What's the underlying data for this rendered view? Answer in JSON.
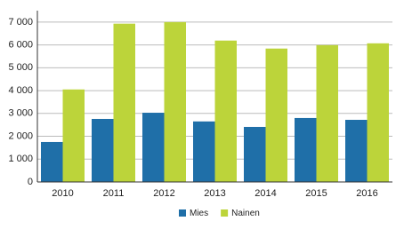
{
  "chart_data": {
    "type": "bar",
    "categories": [
      "2010",
      "2011",
      "2012",
      "2013",
      "2014",
      "2015",
      "2016"
    ],
    "series": [
      {
        "name": "Mies",
        "color": "#1f6fa8",
        "values": [
          1750,
          2760,
          3030,
          2650,
          2410,
          2800,
          2720
        ]
      },
      {
        "name": "Nainen",
        "color": "#bcd43a",
        "values": [
          4050,
          6930,
          7000,
          6190,
          5840,
          5990,
          6070
        ]
      }
    ],
    "ylim": [
      0,
      7500
    ],
    "yticks": [
      0,
      {
        "value": 1000,
        "label": "1 000"
      },
      {
        "value": 2000,
        "label": "2 000"
      },
      {
        "value": 3000,
        "label": "3 000"
      },
      {
        "value": 4000,
        "label": "4 000"
      },
      {
        "value": 5000,
        "label": "5 000"
      },
      {
        "value": 6000,
        "label": "6 000"
      },
      {
        "value": 7000,
        "label": "7 000"
      }
    ],
    "grid": true
  }
}
